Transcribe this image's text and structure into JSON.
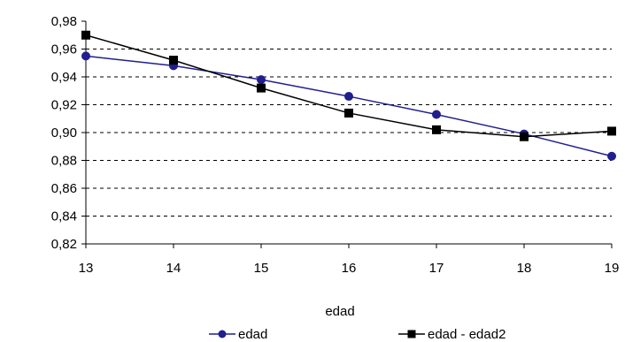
{
  "chart_data": {
    "type": "line",
    "title": "",
    "xlabel": "edad",
    "ylabel": "",
    "x": [
      13,
      14,
      15,
      16,
      17,
      18,
      19
    ],
    "x_tick_labels": [
      "13",
      "14",
      "15",
      "16",
      "17",
      "18",
      "19"
    ],
    "ylim": [
      0.82,
      0.98
    ],
    "y_ticks": [
      0.82,
      0.84,
      0.86,
      0.88,
      0.9,
      0.92,
      0.94,
      0.96,
      0.98
    ],
    "y_tick_labels": [
      "0,82",
      "0,84",
      "0,86",
      "0,88",
      "0,90",
      "0,92",
      "0,94",
      "0,96",
      "0,98"
    ],
    "grid": "horizontal dashed",
    "legend_placement": "bottom",
    "series": [
      {
        "name": "edad",
        "values": [
          0.955,
          0.948,
          0.938,
          0.926,
          0.913,
          0.899,
          0.883
        ],
        "color": "#1f1f8f",
        "marker": "circle"
      },
      {
        "name": "edad - edad2",
        "values": [
          0.97,
          0.952,
          0.932,
          0.914,
          0.902,
          0.897,
          0.901
        ],
        "color": "#000000",
        "marker": "square"
      }
    ]
  }
}
